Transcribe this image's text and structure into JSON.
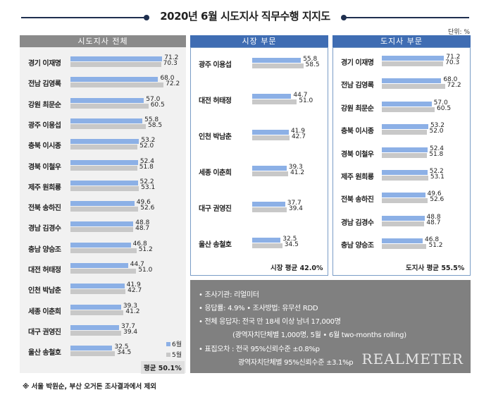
{
  "title": "2020년 6월 시도지사 직무수행 지지도",
  "unit": "단위: %",
  "colors": {
    "current": "#8cb0e6",
    "previous": "#c8c8c8",
    "header_gray": "#8a8a8a",
    "header_blue": "#3f6db3"
  },
  "legend": {
    "current": "6월",
    "previous": "5월"
  },
  "chart_data": [
    {
      "type": "bar",
      "title": "시도지사 전체",
      "categories": [
        "경기 이재명",
        "전남 김영록",
        "강원 최문순",
        "광주 이용섭",
        "충북 이시종",
        "경북 이철우",
        "제주 원희룡",
        "전북 송하진",
        "경남 김경수",
        "충남 양승조",
        "대전 허태정",
        "인천 박남춘",
        "세종 이춘희",
        "대구 권영진",
        "울산 송철호"
      ],
      "series": [
        {
          "name": "6월",
          "values": [
            71.2,
            68.0,
            57.0,
            55.8,
            53.2,
            52.4,
            52.2,
            49.6,
            48.8,
            46.8,
            44.7,
            41.9,
            39.3,
            37.7,
            32.5
          ]
        },
        {
          "name": "5월",
          "values": [
            70.3,
            72.2,
            60.5,
            58.5,
            52.0,
            51.8,
            53.1,
            52.6,
            48.7,
            51.2,
            51.0,
            42.7,
            41.2,
            39.4,
            34.5
          ]
        }
      ],
      "average": "평균 50.1%"
    },
    {
      "type": "bar",
      "title": "시장 부문",
      "categories": [
        "광주 이용섭",
        "대전 허태정",
        "인천 박남춘",
        "세종 이춘희",
        "대구 권영진",
        "울산 송철호"
      ],
      "series": [
        {
          "name": "6월",
          "values": [
            55.8,
            44.7,
            41.9,
            39.3,
            37.7,
            32.5
          ]
        },
        {
          "name": "5월",
          "values": [
            58.5,
            51.0,
            42.7,
            41.2,
            39.4,
            34.5
          ]
        }
      ],
      "average": "시장 평균 42.0%"
    },
    {
      "type": "bar",
      "title": "도지사 부문",
      "categories": [
        "경기 이재명",
        "전남 김영록",
        "강원 최문순",
        "충북 이시종",
        "경북 이철우",
        "제주 원희룡",
        "전북 송하진",
        "경남 김경수",
        "충남 양승조"
      ],
      "series": [
        {
          "name": "6월",
          "values": [
            71.2,
            68.0,
            57.0,
            53.2,
            52.4,
            52.2,
            49.6,
            48.8,
            46.8
          ]
        },
        {
          "name": "5월",
          "values": [
            70.3,
            72.2,
            60.5,
            52.0,
            51.8,
            53.1,
            52.6,
            48.7,
            51.2
          ]
        }
      ],
      "average": "도지사 평균 55.5%"
    }
  ],
  "info": {
    "lines": [
      "• 조사기관: 리얼미터",
      "• 응답률: 4.9% • 조사방법: 유무선 RDD",
      "• 전체 응답자: 전국 만 18세 이상 남녀 17,000명",
      "(광역자치단체별 1,000명, 5월 • 6월 two-months rolling)",
      "• 표집오차 : 전국 95%신뢰수준 ±0.8%p",
      "광역자치단체별 95%신뢰수준 ±3.1%p"
    ],
    "brand": "REALMETER"
  },
  "footnote": "※ 서울 박원순, 부산 오거돈 조사결과에서 제외"
}
